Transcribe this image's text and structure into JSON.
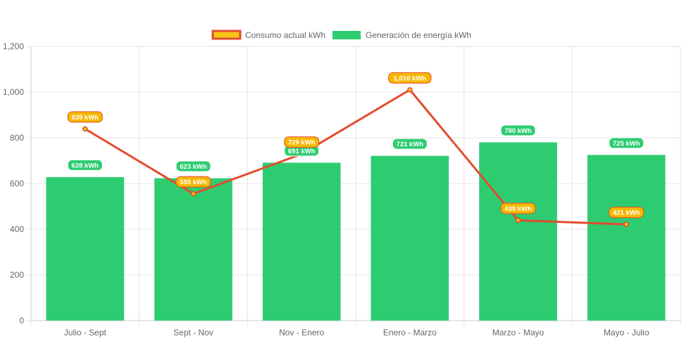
{
  "chart_data": {
    "type": "bar",
    "categories": [
      "Julio - Sept",
      "Sept - Nov",
      "Nov - Enero",
      "Enero - Marzo",
      "Marzo - Mayo",
      "Mayo - Julio"
    ],
    "series": [
      {
        "name": "Consumo actual kWh",
        "type": "line",
        "values": [
          839,
          555,
          729,
          1010,
          439,
          421
        ],
        "labels": [
          "839 kWh",
          "555 kWh",
          "729 kWh",
          "1,010 kWh",
          "439 kWh",
          "421 kWh"
        ],
        "color": "#e24c2e",
        "fill": "#f5c518"
      },
      {
        "name": "Generación de energía kWh",
        "type": "bar",
        "values": [
          628,
          623,
          691,
          721,
          780,
          725
        ],
        "labels": [
          "628 kWh",
          "623 kWh",
          "691 kWh",
          "721 kWh",
          "780 kWh",
          "725 kWh"
        ],
        "color": "#2ecc71"
      }
    ],
    "ylim": [
      0,
      1200
    ],
    "yticks": [
      0,
      200,
      400,
      600,
      800,
      1000,
      1200
    ],
    "ytick_labels": [
      "0",
      "200",
      "400",
      "600",
      "800",
      "1,000",
      "1,200"
    ],
    "grid": true,
    "legend_position": "top-center"
  }
}
